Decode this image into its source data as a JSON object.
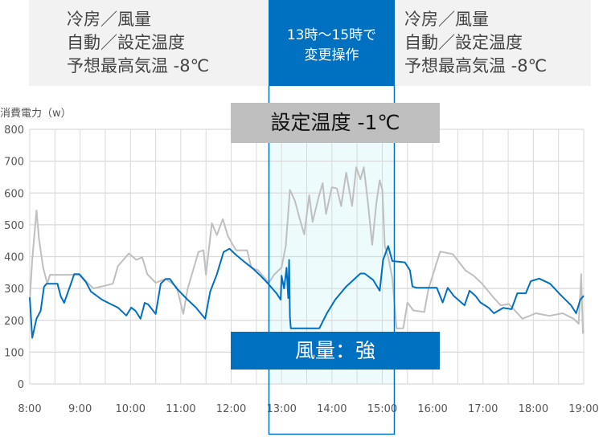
{
  "conditions_left": {
    "lines": [
      "冷房／風量",
      "自動／設定温度",
      "予想最高気温 -8℃"
    ]
  },
  "operation_box": {
    "lines": [
      "13時～15時で",
      "変更操作"
    ]
  },
  "conditions_right": {
    "lines": [
      "冷房／風量",
      "自動／設定温度",
      "予想最高気温 -8℃"
    ]
  },
  "annotation_temp": "設定温度 -1℃",
  "annotation_fan": "風量：強",
  "colors": {
    "blue_series": "#0070c0",
    "gray_series": "#bfbfbf",
    "highlight_fill": "#edfbfd",
    "grid": "#d9d9d9"
  },
  "chart_data": {
    "type": "line",
    "ylabel": "消費電力（w）",
    "ylim": [
      0,
      800
    ],
    "yticks": [
      "0",
      "100",
      "200",
      "300",
      "400",
      "500",
      "600",
      "700",
      "800"
    ],
    "xticks": [
      "8:00",
      "9:00",
      "10:00",
      "11:00",
      "12:00",
      "13:00",
      "14:00",
      "15:00",
      "16:00",
      "17:00",
      "18:00",
      "19:00"
    ],
    "xlim": [
      "8:00",
      "19:00"
    ],
    "grid": true,
    "highlight_range": [
      "13:00",
      "15:00"
    ],
    "series": [
      {
        "color": "blue",
        "points": [
          [
            "8:00",
            272
          ],
          [
            "8:03",
            145
          ],
          [
            "8:08",
            205
          ],
          [
            "8:13",
            230
          ],
          [
            "8:17",
            305
          ],
          [
            "8:20",
            315
          ],
          [
            "8:33",
            315
          ],
          [
            "8:37",
            275
          ],
          [
            "8:41",
            255
          ],
          [
            "8:49",
            315
          ],
          [
            "8:53",
            345
          ],
          [
            "8:59",
            345
          ],
          [
            "9:07",
            320
          ],
          [
            "9:13",
            290
          ],
          [
            "9:26",
            265
          ],
          [
            "9:37",
            250
          ],
          [
            "9:45",
            240
          ],
          [
            "9:55",
            215
          ],
          [
            "10:01",
            240
          ],
          [
            "10:06",
            230
          ],
          [
            "10:12",
            205
          ],
          [
            "10:17",
            255
          ],
          [
            "10:21",
            250
          ],
          [
            "10:30",
            220
          ],
          [
            "10:36",
            315
          ],
          [
            "10:42",
            330
          ],
          [
            "10:47",
            330
          ],
          [
            "10:55",
            300
          ],
          [
            "11:08",
            265
          ],
          [
            "11:18",
            240
          ],
          [
            "11:29",
            205
          ],
          [
            "11:35",
            290
          ],
          [
            "11:43",
            345
          ],
          [
            "11:51",
            415
          ],
          [
            "11:58",
            425
          ],
          [
            "12:06",
            405
          ],
          [
            "12:15",
            385
          ],
          [
            "12:25",
            365
          ],
          [
            "12:35",
            340
          ],
          [
            "12:44",
            315
          ],
          [
            "12:54",
            285
          ],
          [
            "12:59",
            265
          ],
          [
            "13:00",
            340
          ],
          [
            "13:03",
            300
          ],
          [
            "13:06",
            365
          ],
          [
            "13:08",
            270
          ],
          [
            "13:09",
            390
          ],
          [
            "13:10",
            210
          ],
          [
            "13:11",
            175
          ],
          [
            "13:45",
            175
          ],
          [
            "13:54",
            222
          ],
          [
            "14:04",
            265
          ],
          [
            "14:17",
            306
          ],
          [
            "14:34",
            347
          ],
          [
            "14:39",
            347
          ],
          [
            "14:49",
            327
          ],
          [
            "14:57",
            293
          ],
          [
            "15:01",
            390
          ],
          [
            "15:07",
            433
          ],
          [
            "15:12",
            386
          ],
          [
            "15:27",
            382
          ],
          [
            "15:33",
            357
          ],
          [
            "15:36",
            306
          ],
          [
            "15:41",
            302
          ],
          [
            "16:05",
            302
          ],
          [
            "16:12",
            256
          ],
          [
            "16:18",
            302
          ],
          [
            "16:25",
            277
          ],
          [
            "16:38",
            247
          ],
          [
            "16:44",
            293
          ],
          [
            "16:51",
            277
          ],
          [
            "16:57",
            256
          ],
          [
            "17:07",
            239
          ],
          [
            "17:13",
            222
          ],
          [
            "17:24",
            239
          ],
          [
            "17:34",
            235
          ],
          [
            "17:41",
            285
          ],
          [
            "17:51",
            285
          ],
          [
            "17:57",
            323
          ],
          [
            "18:07",
            331
          ],
          [
            "18:20",
            315
          ],
          [
            "18:32",
            281
          ],
          [
            "18:45",
            247
          ],
          [
            "18:51",
            222
          ],
          [
            "18:56",
            265
          ],
          [
            "19:00",
            277
          ]
        ]
      },
      {
        "color": "gray",
        "points": [
          [
            "8:00",
            262
          ],
          [
            "8:03",
            390
          ],
          [
            "8:08",
            545
          ],
          [
            "8:11",
            455
          ],
          [
            "8:16",
            365
          ],
          [
            "8:21",
            315
          ],
          [
            "8:24",
            343
          ],
          [
            "8:38",
            343
          ],
          [
            "8:48",
            343
          ],
          [
            "9:00",
            343
          ],
          [
            "9:10",
            315
          ],
          [
            "9:16",
            300
          ],
          [
            "9:39",
            315
          ],
          [
            "9:45",
            370
          ],
          [
            "9:58",
            410
          ],
          [
            "10:07",
            390
          ],
          [
            "10:14",
            398
          ],
          [
            "10:20",
            345
          ],
          [
            "10:30",
            318
          ],
          [
            "10:42",
            330
          ],
          [
            "10:55",
            305
          ],
          [
            "11:03",
            220
          ],
          [
            "11:08",
            298
          ],
          [
            "11:21",
            415
          ],
          [
            "11:27",
            420
          ],
          [
            "11:30",
            343
          ],
          [
            "11:37",
            505
          ],
          [
            "11:43",
            468
          ],
          [
            "11:50",
            518
          ],
          [
            "11:56",
            465
          ],
          [
            "12:03",
            432
          ],
          [
            "12:06",
            420
          ],
          [
            "12:19",
            420
          ],
          [
            "12:24",
            365
          ],
          [
            "12:32",
            357
          ],
          [
            "12:45",
            318
          ],
          [
            "12:51",
            343
          ],
          [
            "13:00",
            366
          ],
          [
            "13:05",
            433
          ],
          [
            "13:10",
            610
          ],
          [
            "13:16",
            575
          ],
          [
            "13:21",
            525
          ],
          [
            "13:27",
            470
          ],
          [
            "13:33",
            593
          ],
          [
            "13:37",
            509
          ],
          [
            "13:44",
            585
          ],
          [
            "13:49",
            631
          ],
          [
            "13:53",
            534
          ],
          [
            "14:00",
            618
          ],
          [
            "14:06",
            614
          ],
          [
            "14:11",
            559
          ],
          [
            "14:17",
            664
          ],
          [
            "14:24",
            559
          ],
          [
            "14:29",
            681
          ],
          [
            "14:34",
            643
          ],
          [
            "14:38",
            681
          ],
          [
            "14:43",
            568
          ],
          [
            "14:48",
            437
          ],
          [
            "14:53",
            568
          ],
          [
            "14:57",
            640
          ],
          [
            "15:00",
            610
          ],
          [
            "15:03",
            433
          ],
          [
            "15:07",
            400
          ],
          [
            "15:12",
            332
          ],
          [
            "15:17",
            175
          ],
          [
            "15:25",
            175
          ],
          [
            "15:30",
            256
          ],
          [
            "15:37",
            231
          ],
          [
            "15:50",
            226
          ],
          [
            "15:55",
            298
          ],
          [
            "16:03",
            366
          ],
          [
            "16:09",
            416
          ],
          [
            "16:24",
            408
          ],
          [
            "16:39",
            357
          ],
          [
            "16:49",
            340
          ],
          [
            "16:59",
            315
          ],
          [
            "17:12",
            273
          ],
          [
            "17:21",
            247
          ],
          [
            "17:31",
            251
          ],
          [
            "17:47",
            205
          ],
          [
            "18:03",
            222
          ],
          [
            "18:19",
            214
          ],
          [
            "18:35",
            222
          ],
          [
            "18:48",
            205
          ],
          [
            "18:54",
            189
          ],
          [
            "18:57",
            345
          ],
          [
            "18:59",
            160
          ],
          [
            "19:00",
            168
          ]
        ]
      }
    ]
  }
}
